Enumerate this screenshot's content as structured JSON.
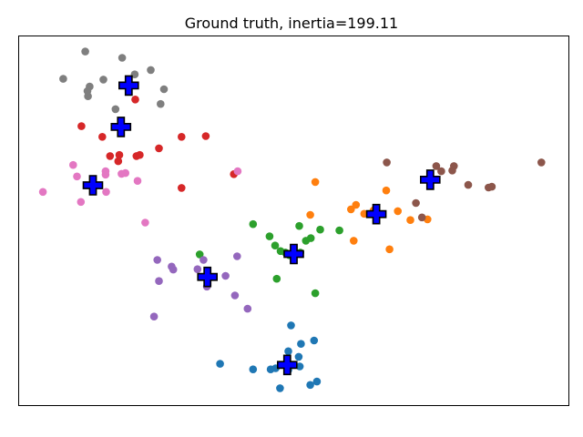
{
  "chart_data": {
    "type": "scatter",
    "title": "Ground truth, inertia=199.11",
    "xlabel": "",
    "ylabel": "",
    "xlim": [
      0,
      100
    ],
    "ylim": [
      0,
      100
    ],
    "grid": false,
    "axis_ticks": false,
    "series": [
      {
        "color": "#1f77b4",
        "points": [
          [
            49.5,
            21.7
          ],
          [
            53.7,
            17.6
          ],
          [
            51.3,
            16.7
          ],
          [
            49.0,
            14.7
          ],
          [
            50.9,
            13.2
          ],
          [
            36.6,
            11.3
          ],
          [
            42.6,
            9.8
          ],
          [
            45.8,
            9.8
          ],
          [
            46.7,
            10.1
          ],
          [
            49.0,
            9.6
          ],
          [
            51.1,
            10.6
          ],
          [
            54.2,
            6.5
          ],
          [
            53.0,
            5.6
          ],
          [
            47.5,
            4.7
          ]
        ]
      },
      {
        "color": "#ff7f0e",
        "points": [
          [
            53.9,
            60.5
          ],
          [
            66.8,
            58.2
          ],
          [
            61.3,
            54.3
          ],
          [
            60.4,
            53.1
          ],
          [
            62.8,
            51.9
          ],
          [
            64.5,
            52.8
          ],
          [
            68.9,
            52.6
          ],
          [
            71.2,
            50.2
          ],
          [
            74.3,
            50.4
          ],
          [
            53.0,
            51.6
          ],
          [
            60.9,
            44.6
          ],
          [
            67.4,
            42.3
          ]
        ]
      },
      {
        "color": "#2ca02c",
        "points": [
          [
            42.6,
            49.1
          ],
          [
            51.0,
            48.6
          ],
          [
            54.8,
            47.6
          ],
          [
            58.3,
            47.4
          ],
          [
            45.6,
            45.8
          ],
          [
            53.1,
            45.3
          ],
          [
            52.2,
            44.6
          ],
          [
            46.6,
            43.3
          ],
          [
            47.6,
            41.8
          ],
          [
            48.5,
            41.4
          ],
          [
            49.2,
            40.7
          ],
          [
            51.2,
            41.4
          ],
          [
            32.9,
            40.9
          ],
          [
            46.9,
            34.3
          ],
          [
            53.9,
            30.4
          ]
        ]
      },
      {
        "color": "#d62728",
        "points": [
          [
            11.4,
            75.6
          ],
          [
            15.2,
            72.7
          ],
          [
            29.6,
            72.7
          ],
          [
            34.0,
            72.9
          ],
          [
            25.5,
            69.6
          ],
          [
            16.6,
            67.5
          ],
          [
            18.3,
            67.8
          ],
          [
            18.1,
            66.1
          ],
          [
            21.4,
            67.5
          ],
          [
            22.0,
            67.8
          ],
          [
            39.1,
            62.6
          ],
          [
            29.6,
            58.9
          ],
          [
            21.2,
            82.8
          ]
        ]
      },
      {
        "color": "#9467bd",
        "points": [
          [
            25.2,
            39.4
          ],
          [
            33.6,
            39.4
          ],
          [
            27.8,
            37.6
          ],
          [
            28.1,
            36.8
          ],
          [
            32.5,
            36.9
          ],
          [
            39.7,
            40.4
          ],
          [
            37.6,
            35.1
          ],
          [
            25.5,
            33.7
          ],
          [
            34.2,
            32.2
          ],
          [
            39.3,
            29.8
          ],
          [
            41.6,
            26.2
          ],
          [
            24.6,
            24.1
          ]
        ]
      },
      {
        "color": "#8c564b",
        "points": [
          [
            66.9,
            65.8
          ],
          [
            75.9,
            64.8
          ],
          [
            76.8,
            63.4
          ],
          [
            79.1,
            64.8
          ],
          [
            78.8,
            63.6
          ],
          [
            81.7,
            59.7
          ],
          [
            85.4,
            59.0
          ],
          [
            86.0,
            59.2
          ],
          [
            95.0,
            65.8
          ],
          [
            72.2,
            54.8
          ],
          [
            73.3,
            50.9
          ]
        ]
      },
      {
        "color": "#e377c2",
        "points": [
          [
            9.9,
            65.1
          ],
          [
            10.6,
            62.0
          ],
          [
            15.8,
            63.4
          ],
          [
            15.8,
            62.5
          ],
          [
            18.7,
            62.7
          ],
          [
            19.4,
            62.9
          ],
          [
            21.6,
            60.8
          ],
          [
            39.8,
            63.4
          ],
          [
            15.9,
            57.8
          ],
          [
            4.4,
            57.8
          ],
          [
            11.3,
            55.1
          ],
          [
            23.0,
            49.5
          ]
        ]
      },
      {
        "color": "#7f7f7f",
        "points": [
          [
            12.1,
            95.8
          ],
          [
            18.8,
            94.1
          ],
          [
            8.1,
            88.4
          ],
          [
            15.4,
            88.2
          ],
          [
            21.1,
            89.6
          ],
          [
            24.0,
            90.8
          ],
          [
            12.9,
            86.3
          ],
          [
            12.5,
            85.1
          ],
          [
            12.6,
            83.7
          ],
          [
            26.4,
            85.6
          ],
          [
            25.8,
            81.6
          ],
          [
            17.6,
            80.2
          ]
        ]
      }
    ],
    "centroids": {
      "marker": "plus",
      "color": "#0000ff",
      "points": [
        [
          20.0,
          86.6
        ],
        [
          18.6,
          75.4
        ],
        [
          13.5,
          59.6
        ],
        [
          48.8,
          11.0
        ],
        [
          65.0,
          51.8
        ],
        [
          50.0,
          41.0
        ],
        [
          34.3,
          34.8
        ],
        [
          74.8,
          61.1
        ]
      ]
    }
  }
}
